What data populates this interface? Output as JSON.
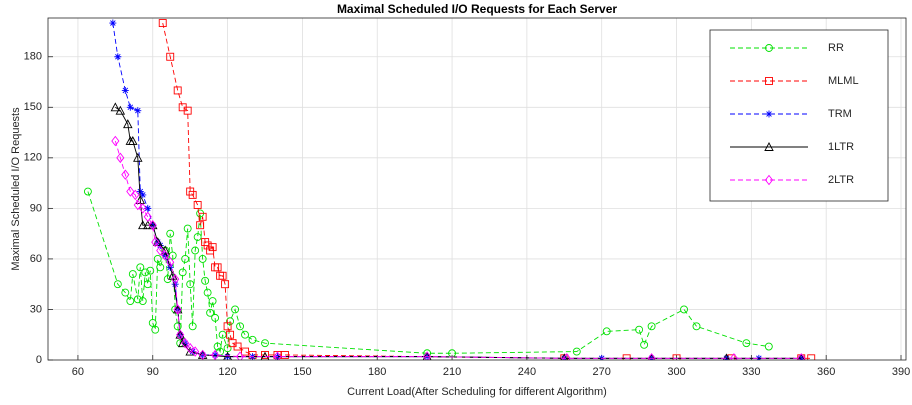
{
  "chart_data": {
    "type": "line",
    "title": "Maximal Scheduled I/O Requests for Each Server",
    "xlabel": "Current Load(After Scheduling for different Algorithm)",
    "ylabel": "Maximal Scheduled I/O Requests",
    "xlim": [
      48,
      392
    ],
    "ylim": [
      0,
      203
    ],
    "xticks": [
      60,
      90,
      120,
      150,
      180,
      210,
      240,
      270,
      300,
      330,
      360,
      390
    ],
    "yticks": [
      0,
      30,
      60,
      90,
      120,
      150,
      180
    ],
    "grid": true,
    "legend": "upper right",
    "series": [
      {
        "name": "RR",
        "color": "#00e000",
        "marker": "circle",
        "dash": true,
        "x": [
          64,
          76,
          79,
          81,
          82,
          84,
          85,
          86,
          87,
          88,
          89,
          90,
          91,
          92,
          93,
          95,
          96,
          97,
          98,
          99,
          100,
          101,
          102,
          103,
          104,
          105,
          106,
          107,
          108,
          109,
          110,
          111,
          112,
          113,
          114,
          115,
          116,
          117,
          118,
          120,
          121,
          123,
          125,
          127,
          130,
          135,
          200,
          210,
          260,
          272,
          285,
          287,
          290,
          303,
          308,
          328,
          337
        ],
        "values": [
          100,
          45,
          40,
          35,
          51,
          36,
          55,
          35,
          52,
          45,
          53,
          22,
          18,
          60,
          55,
          65,
          48,
          75,
          62,
          30,
          20,
          10,
          52,
          60,
          78,
          45,
          20,
          65,
          73,
          87,
          60,
          47,
          40,
          28,
          35,
          25,
          8,
          5,
          15,
          7,
          23,
          30,
          20,
          15,
          12,
          10,
          4,
          4,
          5,
          17,
          18,
          9,
          20,
          30,
          20,
          10,
          8
        ]
      },
      {
        "name": "MLML",
        "color": "#ff0000",
        "marker": "square",
        "dash": true,
        "x": [
          94,
          97,
          100,
          102,
          104,
          105,
          106,
          108,
          109,
          110,
          111,
          112,
          113,
          114,
          115,
          116,
          117,
          118,
          119,
          120,
          121,
          122,
          124,
          127,
          130,
          135,
          140,
          143,
          255,
          280,
          300,
          322,
          350,
          354
        ],
        "values": [
          200,
          180,
          160,
          150,
          148,
          100,
          98,
          92,
          80,
          85,
          70,
          68,
          65,
          67,
          55,
          55,
          50,
          50,
          45,
          20,
          15,
          10,
          8,
          5,
          3,
          3,
          3,
          3,
          1,
          1,
          1,
          1,
          1,
          1
        ]
      },
      {
        "name": "TRM",
        "color": "#0000ff",
        "marker": "asterisk",
        "dash": true,
        "x": [
          74,
          76,
          79,
          81,
          84,
          85,
          86,
          88,
          90,
          92,
          93,
          95,
          97,
          99,
          100,
          101,
          103,
          106,
          110,
          115,
          120,
          130,
          140,
          200,
          255,
          270,
          290,
          320,
          333,
          350
        ],
        "values": [
          200,
          180,
          160,
          150,
          148,
          100,
          98,
          90,
          80,
          70,
          68,
          62,
          55,
          45,
          30,
          15,
          10,
          5,
          3,
          3,
          2,
          2,
          2,
          2,
          1,
          1,
          1,
          1,
          1,
          1
        ]
      },
      {
        "name": "1LTR",
        "color": "#000000",
        "marker": "triangle",
        "dash": false,
        "x": [
          75,
          77,
          80,
          81,
          82,
          84,
          85,
          86,
          88,
          90,
          92,
          95,
          98,
          100,
          101,
          102,
          105,
          110,
          120,
          135,
          200,
          255,
          290,
          320,
          350
        ],
        "values": [
          150,
          148,
          140,
          130,
          130,
          120,
          95,
          80,
          80,
          80,
          70,
          65,
          50,
          30,
          15,
          10,
          5,
          3,
          2,
          2,
          2,
          1,
          1,
          1,
          1
        ]
      },
      {
        "name": "2LTR",
        "color": "#ff00ff",
        "marker": "diamond",
        "dash": true,
        "x": [
          75,
          77,
          79,
          81,
          83,
          84,
          86,
          88,
          90,
          91,
          93,
          95,
          97,
          99,
          100,
          101,
          103,
          105,
          107,
          110,
          115,
          125,
          140,
          200,
          256,
          290,
          323,
          350
        ],
        "values": [
          130,
          120,
          110,
          100,
          98,
          92,
          90,
          85,
          80,
          70,
          65,
          62,
          58,
          48,
          30,
          15,
          10,
          7,
          5,
          3,
          3,
          2,
          2,
          2,
          1,
          1,
          1,
          1
        ]
      }
    ]
  }
}
